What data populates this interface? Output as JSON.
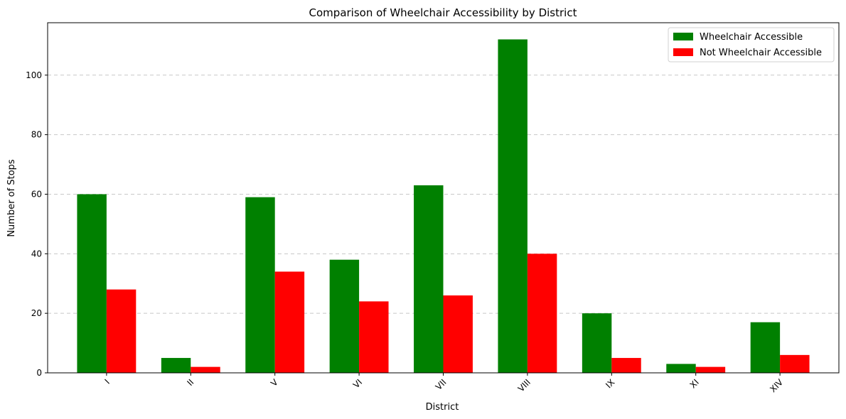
{
  "chart_data": {
    "type": "bar",
    "title": "Comparison of Wheelchair Accessibility by District",
    "xlabel": "District",
    "ylabel": "Number of Stops",
    "categories": [
      "I",
      "II",
      "V",
      "VI",
      "VII",
      "VIII",
      "IX",
      "XI",
      "XIV"
    ],
    "series": [
      {
        "name": "Wheelchair Accessible",
        "color": "#008000",
        "values": [
          60,
          5,
          59,
          38,
          63,
          112,
          20,
          3,
          17
        ]
      },
      {
        "name": "Not Wheelchair Accessible",
        "color": "#ff0000",
        "values": [
          28,
          2,
          34,
          24,
          26,
          40,
          5,
          2,
          6
        ]
      }
    ],
    "ylim": [
      0,
      117.6
    ],
    "yticks": [
      0,
      20,
      40,
      60,
      80,
      100
    ],
    "grid": "y-dashed",
    "legend_position": "top-right",
    "x_tick_rotation": "45"
  }
}
